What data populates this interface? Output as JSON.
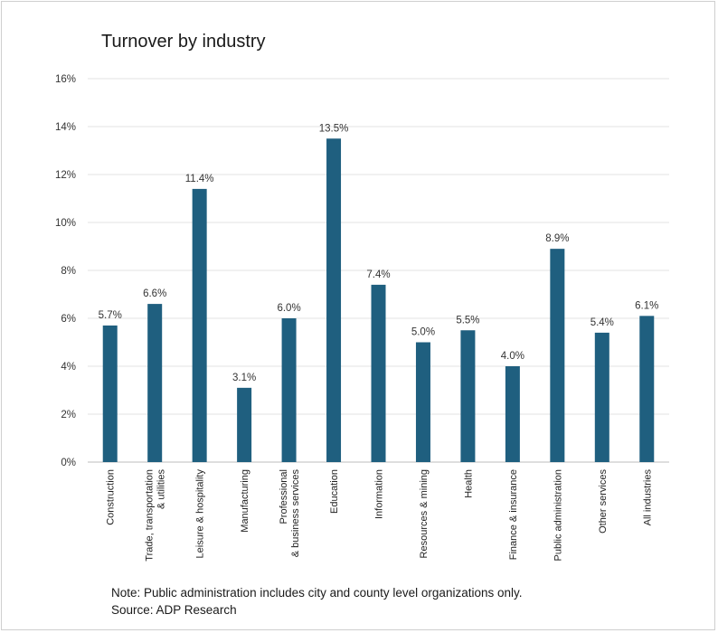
{
  "chart_data": {
    "type": "bar",
    "title": "Turnover by industry",
    "categories": [
      "Construction",
      "Trade, transportation\n& utilities",
      "Leisure & hospitality",
      "Manufacturing",
      "Professional\n& business services",
      "Education",
      "Information",
      "Resources & mining",
      "Health",
      "Finance & insurance",
      "Public administration",
      "Other services",
      "All industries"
    ],
    "values": [
      5.7,
      6.6,
      11.4,
      3.1,
      6.0,
      13.5,
      7.4,
      5.0,
      5.5,
      4.0,
      8.9,
      5.4,
      6.1
    ],
    "data_labels": [
      "5.7%",
      "6.6%",
      "11.4%",
      "3.1%",
      "6.0%",
      "13.5%",
      "7.4%",
      "5.0%",
      "5.5%",
      "4.0%",
      "8.9%",
      "5.4%",
      "6.1%"
    ],
    "yticks": [
      "0%",
      "2%",
      "4%",
      "6%",
      "8%",
      "10%",
      "12%",
      "14%",
      "16%"
    ],
    "ylim": [
      0,
      16
    ],
    "grid": true,
    "bar_color": "#1f5f7f",
    "xlabel": "",
    "ylabel": ""
  },
  "notes": {
    "line1": "Note: Public administration includes city and county level organizations only.",
    "line2": "Source: ADP Research"
  }
}
